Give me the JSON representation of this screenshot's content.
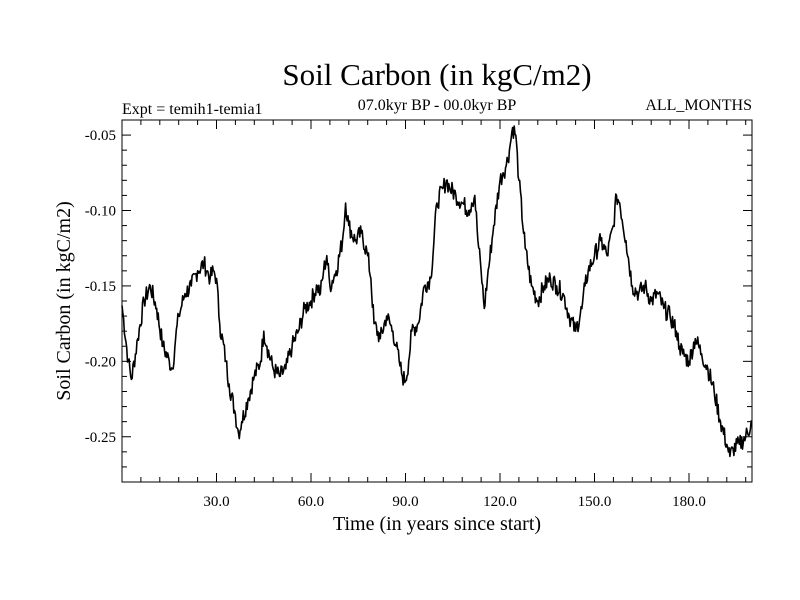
{
  "chart_data": {
    "type": "line",
    "title": "Soil Carbon (in kgC/m2)",
    "subtitle_left": "Expt = temih1-temia1",
    "subtitle_center": "07.0kyr BP - 00.0kyr BP",
    "subtitle_right": "ALL_MONTHS",
    "xlabel": "Time (in years since start)",
    "ylabel": "Soil Carbon (in kgC/m2)",
    "xlim": [
      0,
      200
    ],
    "ylim": [
      -0.28,
      -0.04
    ],
    "x_ticks": [
      30,
      60,
      90,
      120,
      150,
      180
    ],
    "x_tick_labels": [
      "30.0",
      "60.0",
      "90.0",
      "120.0",
      "150.0",
      "180.0"
    ],
    "y_ticks": [
      -0.05,
      -0.1,
      -0.15,
      -0.2,
      -0.25
    ],
    "y_tick_labels": [
      "-0.05",
      "-0.10",
      "-0.15",
      "-0.20",
      "-0.25"
    ],
    "grid": false,
    "series": [
      {
        "name": "Soil Carbon",
        "x": [
          0,
          2,
          3,
          5,
          7,
          9,
          11,
          13,
          15,
          16,
          17,
          18,
          20,
          22,
          24,
          26,
          27,
          28,
          29,
          30,
          31,
          33,
          34,
          36,
          37,
          38,
          40,
          42,
          44,
          45,
          46,
          48,
          50,
          52,
          54,
          56,
          58,
          60,
          62,
          63,
          64,
          65,
          66,
          68,
          70,
          71,
          72,
          74,
          76,
          78,
          79,
          80,
          82,
          84,
          86,
          87,
          88,
          89,
          90,
          91,
          92,
          94,
          96,
          98,
          100,
          102,
          103,
          104,
          106,
          108,
          110,
          111,
          112,
          113,
          114,
          115,
          116,
          118,
          120,
          121,
          122,
          123,
          124,
          125,
          126,
          128,
          130,
          132,
          134,
          136,
          138,
          140,
          142,
          144,
          146,
          147,
          148,
          150,
          152,
          154,
          156,
          157,
          158,
          160,
          162,
          164,
          166,
          168,
          170,
          172,
          174,
          176,
          177,
          178,
          180,
          182,
          184,
          186,
          188,
          190,
          192,
          193,
          194,
          196,
          198,
          200
        ],
        "values": [
          -0.163,
          -0.2,
          -0.212,
          -0.185,
          -0.16,
          -0.15,
          -0.165,
          -0.19,
          -0.2,
          -0.205,
          -0.185,
          -0.17,
          -0.155,
          -0.15,
          -0.14,
          -0.135,
          -0.14,
          -0.145,
          -0.14,
          -0.145,
          -0.175,
          -0.2,
          -0.215,
          -0.235,
          -0.248,
          -0.24,
          -0.225,
          -0.21,
          -0.2,
          -0.18,
          -0.19,
          -0.205,
          -0.21,
          -0.205,
          -0.19,
          -0.18,
          -0.165,
          -0.16,
          -0.15,
          -0.155,
          -0.14,
          -0.13,
          -0.15,
          -0.14,
          -0.12,
          -0.095,
          -0.11,
          -0.12,
          -0.115,
          -0.13,
          -0.145,
          -0.175,
          -0.185,
          -0.17,
          -0.18,
          -0.19,
          -0.2,
          -0.21,
          -0.213,
          -0.2,
          -0.18,
          -0.175,
          -0.15,
          -0.145,
          -0.095,
          -0.085,
          -0.08,
          -0.085,
          -0.09,
          -0.095,
          -0.1,
          -0.095,
          -0.09,
          -0.12,
          -0.14,
          -0.165,
          -0.145,
          -0.11,
          -0.08,
          -0.075,
          -0.07,
          -0.06,
          -0.045,
          -0.05,
          -0.08,
          -0.125,
          -0.15,
          -0.16,
          -0.15,
          -0.145,
          -0.15,
          -0.155,
          -0.17,
          -0.18,
          -0.165,
          -0.15,
          -0.14,
          -0.13,
          -0.12,
          -0.13,
          -0.11,
          -0.09,
          -0.095,
          -0.12,
          -0.15,
          -0.155,
          -0.15,
          -0.16,
          -0.155,
          -0.165,
          -0.17,
          -0.18,
          -0.19,
          -0.195,
          -0.2,
          -0.185,
          -0.195,
          -0.205,
          -0.22,
          -0.24,
          -0.255,
          -0.263,
          -0.258,
          -0.255,
          -0.25,
          -0.24
        ]
      }
    ]
  }
}
